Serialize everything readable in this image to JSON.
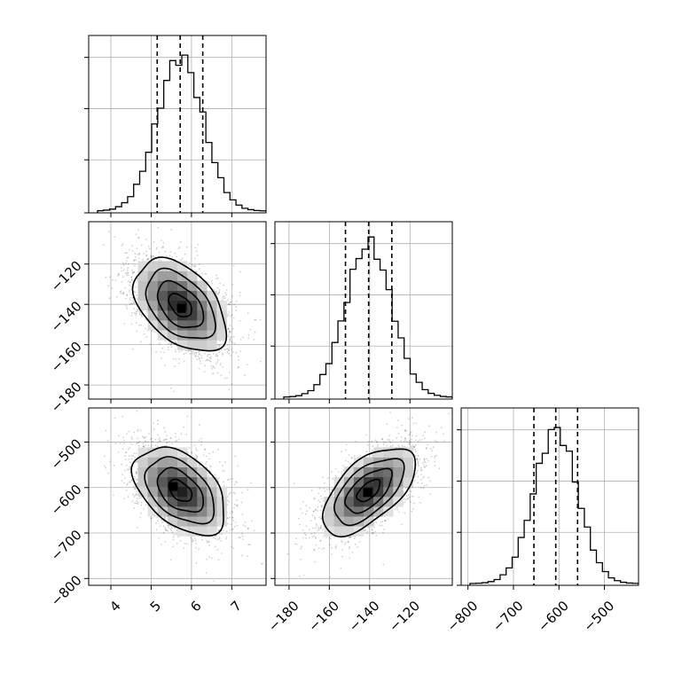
{
  "chart_data": {
    "type": "corner",
    "parameters": [
      {
        "range": [
          3.45,
          7.85
        ],
        "ticks": [
          4,
          5,
          6,
          7
        ],
        "tick_labels": [
          "4",
          "5",
          "6",
          "7"
        ]
      },
      {
        "range": [
          -187,
          -99
        ],
        "ticks": [
          -180,
          -160,
          -140,
          -120
        ],
        "tick_labels": [
          "−180",
          "−160",
          "−140",
          "−120"
        ]
      },
      {
        "range": [
          -815,
          -425
        ],
        "ticks": [
          -800,
          -700,
          -600,
          -500
        ],
        "tick_labels": [
          "−800",
          "−700",
          "−600",
          "−500"
        ]
      }
    ],
    "marginals": [
      {
        "param": 0,
        "mean": 5.72,
        "std": 0.57,
        "peak_count": 3000,
        "hist_ytick_values": [
          1000,
          2000,
          3000
        ],
        "quantiles": [
          5.15,
          5.72,
          6.28
        ]
      },
      {
        "param": 1,
        "mean": -140.5,
        "std": 11.5,
        "peak_count": 3000,
        "hist_ytick_values": [
          1000,
          2000,
          3000
        ],
        "quantiles": [
          -152,
          -140.5,
          -129
        ]
      },
      {
        "param": 2,
        "mean": -607,
        "std": 48,
        "peak_count": 3000,
        "hist_ytick_values": [
          1000,
          2000,
          3000
        ],
        "quantiles": [
          -655,
          -607,
          -559
        ]
      }
    ],
    "pairs": [
      {
        "x_param": 0,
        "y_param": 1,
        "mean": [
          5.72,
          -140.5
        ],
        "std": [
          0.57,
          11.5
        ],
        "correlation": -0.45,
        "density_peak": [
          5.75,
          -142
        ]
      },
      {
        "x_param": 0,
        "y_param": 2,
        "mean": [
          5.72,
          -607
        ],
        "std": [
          0.57,
          48
        ],
        "correlation": -0.45,
        "density_peak": [
          5.55,
          -598
        ]
      },
      {
        "x_param": 1,
        "y_param": 2,
        "mean": [
          -140.5,
          -607
        ],
        "std": [
          11.5,
          48
        ],
        "correlation": 0.6,
        "density_peak": [
          -141,
          -611
        ]
      }
    ],
    "contour_levels_sigma": [
      0.5,
      1.0,
      1.5,
      2.0
    ],
    "grid": true,
    "title": "",
    "colors": {
      "lines": "#000000",
      "grid": "#b0b0b0",
      "points": "#000000"
    }
  }
}
